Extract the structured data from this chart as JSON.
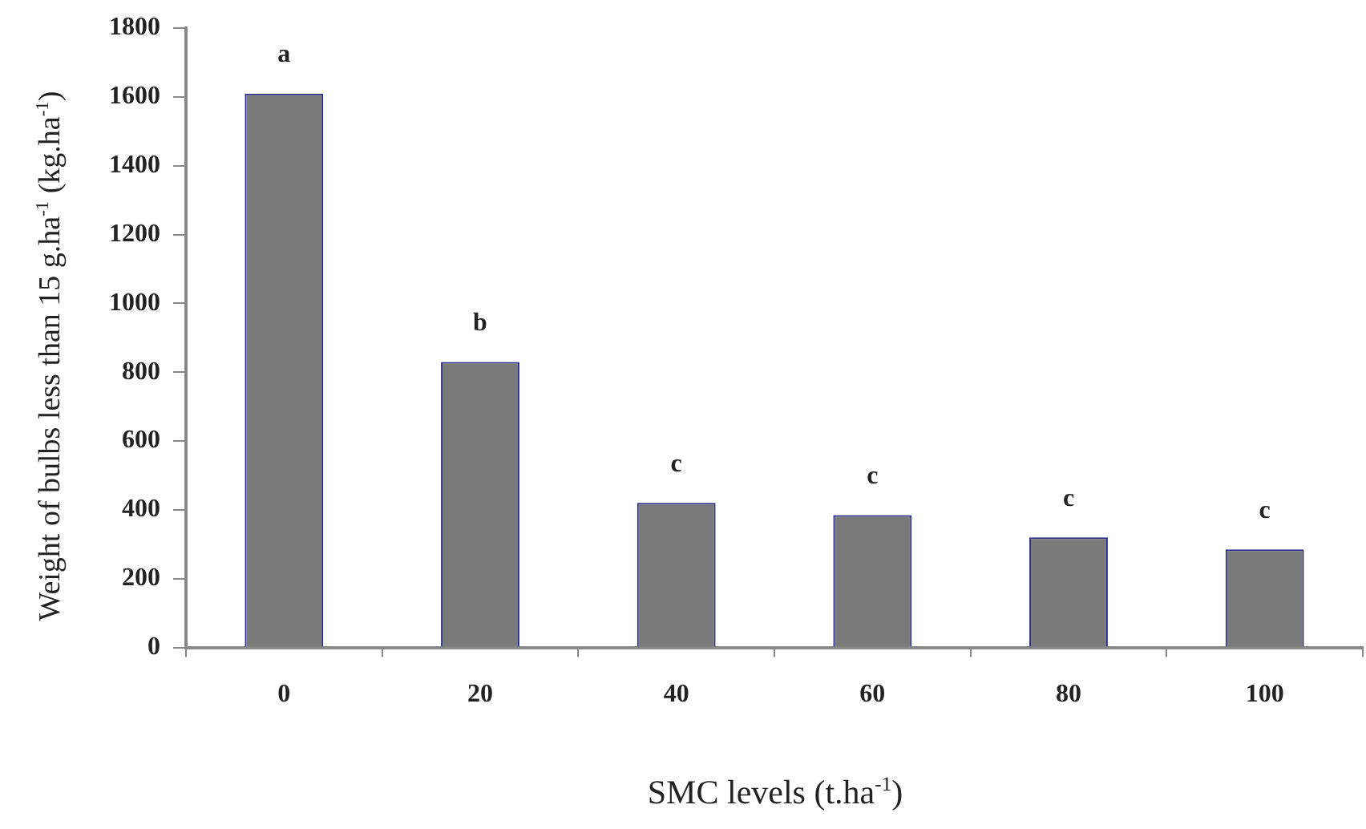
{
  "chart_data": {
    "type": "bar",
    "xlabel": "SMC levels (t.ha$^{-1}$)",
    "ylabel": "Weight of bulbs less than 15 g.ha$^{-1}$ (kg.ha$^{-1}$)",
    "categories": [
      "0",
      "20",
      "40",
      "60",
      "80",
      "100"
    ],
    "values": [
      1610,
      830,
      420,
      385,
      320,
      285
    ],
    "color": "#7a7a7a",
    "ylim": [
      0,
      1800
    ],
    "yticks": [
      0,
      200,
      400,
      600,
      800,
      1000,
      1200,
      1400,
      1600,
      1800
    ],
    "grid": false,
    "legend": false,
    "annotations": [
      {
        "text": "a",
        "x": "0",
        "y": 1610
      },
      {
        "text": "b",
        "x": "20",
        "y": 830
      },
      {
        "text": "c",
        "x": "40",
        "y": 420
      },
      {
        "text": "c",
        "x": "60",
        "y": 385
      },
      {
        "text": "c",
        "x": "80",
        "y": 320
      },
      {
        "text": "c",
        "x": "100",
        "y": 285
      }
    ]
  }
}
